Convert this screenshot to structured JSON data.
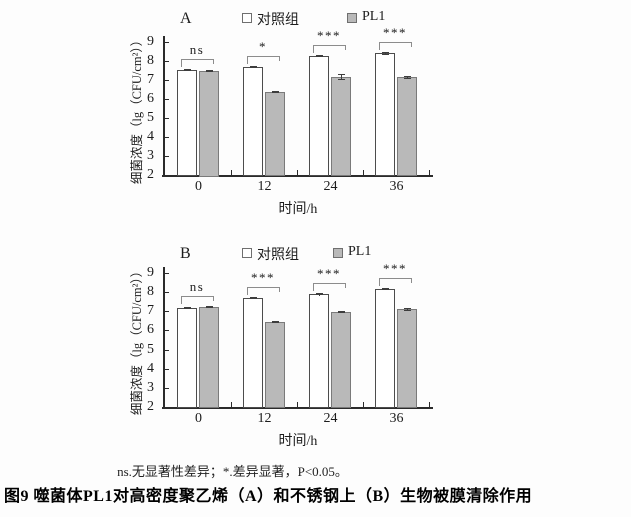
{
  "figure": {
    "note": "ns.无显著性差异；*.差异显著，P<0.05。",
    "caption": "图9 噬菌体PL1对高密度聚乙烯（A）和不锈钢上（B）生物被膜清除作用"
  },
  "colors": {
    "control_fill": "#ffffff",
    "control_border": "#4c4c4c",
    "pl1_fill": "#b9b9b9",
    "pl1_border": "#7a7a7a",
    "axis": "#2b2b2b",
    "bracket": "#8c8c8c",
    "error": "#3d3d3d",
    "text": "#1c1c1c"
  },
  "chart_data": [
    {
      "type": "bar",
      "panel": "A",
      "categories": [
        "0",
        "12",
        "24",
        "36"
      ],
      "series": [
        {
          "name": "对照组",
          "values": [
            7.55,
            7.7,
            8.25,
            8.4
          ],
          "errors": [
            0.05,
            0.05,
            0.06,
            0.08
          ]
        },
        {
          "name": "PL1",
          "values": [
            7.5,
            6.35,
            7.15,
            7.15
          ],
          "errors": [
            0.05,
            0.05,
            0.15,
            0.08
          ]
        }
      ],
      "significance": [
        "ns",
        "*",
        "***",
        "***"
      ],
      "xlabel": "时间/h",
      "ylabel": "细菌浓度（lg（CFU/cm²））",
      "ylim": [
        2,
        9
      ],
      "yticks": [
        2,
        3,
        4,
        5,
        6,
        7,
        8,
        9
      ],
      "grid": false,
      "legend_position": "top"
    },
    {
      "type": "bar",
      "panel": "B",
      "categories": [
        "0",
        "12",
        "24",
        "36"
      ],
      "series": [
        {
          "name": "对照组",
          "values": [
            7.15,
            7.7,
            7.9,
            8.15
          ],
          "errors": [
            0.04,
            0.05,
            0.07,
            0.03
          ]
        },
        {
          "name": "PL1",
          "values": [
            7.2,
            6.45,
            6.95,
            7.1
          ],
          "errors": [
            0.04,
            0.05,
            0.06,
            0.07
          ]
        }
      ],
      "significance": [
        "ns",
        "***",
        "***",
        "***"
      ],
      "xlabel": "时间/h",
      "ylabel": "细菌浓度（lg（CFU/cm²））",
      "ylim": [
        2,
        9
      ],
      "yticks": [
        2,
        3,
        4,
        5,
        6,
        7,
        8,
        9
      ],
      "grid": false,
      "legend_position": "top"
    }
  ]
}
